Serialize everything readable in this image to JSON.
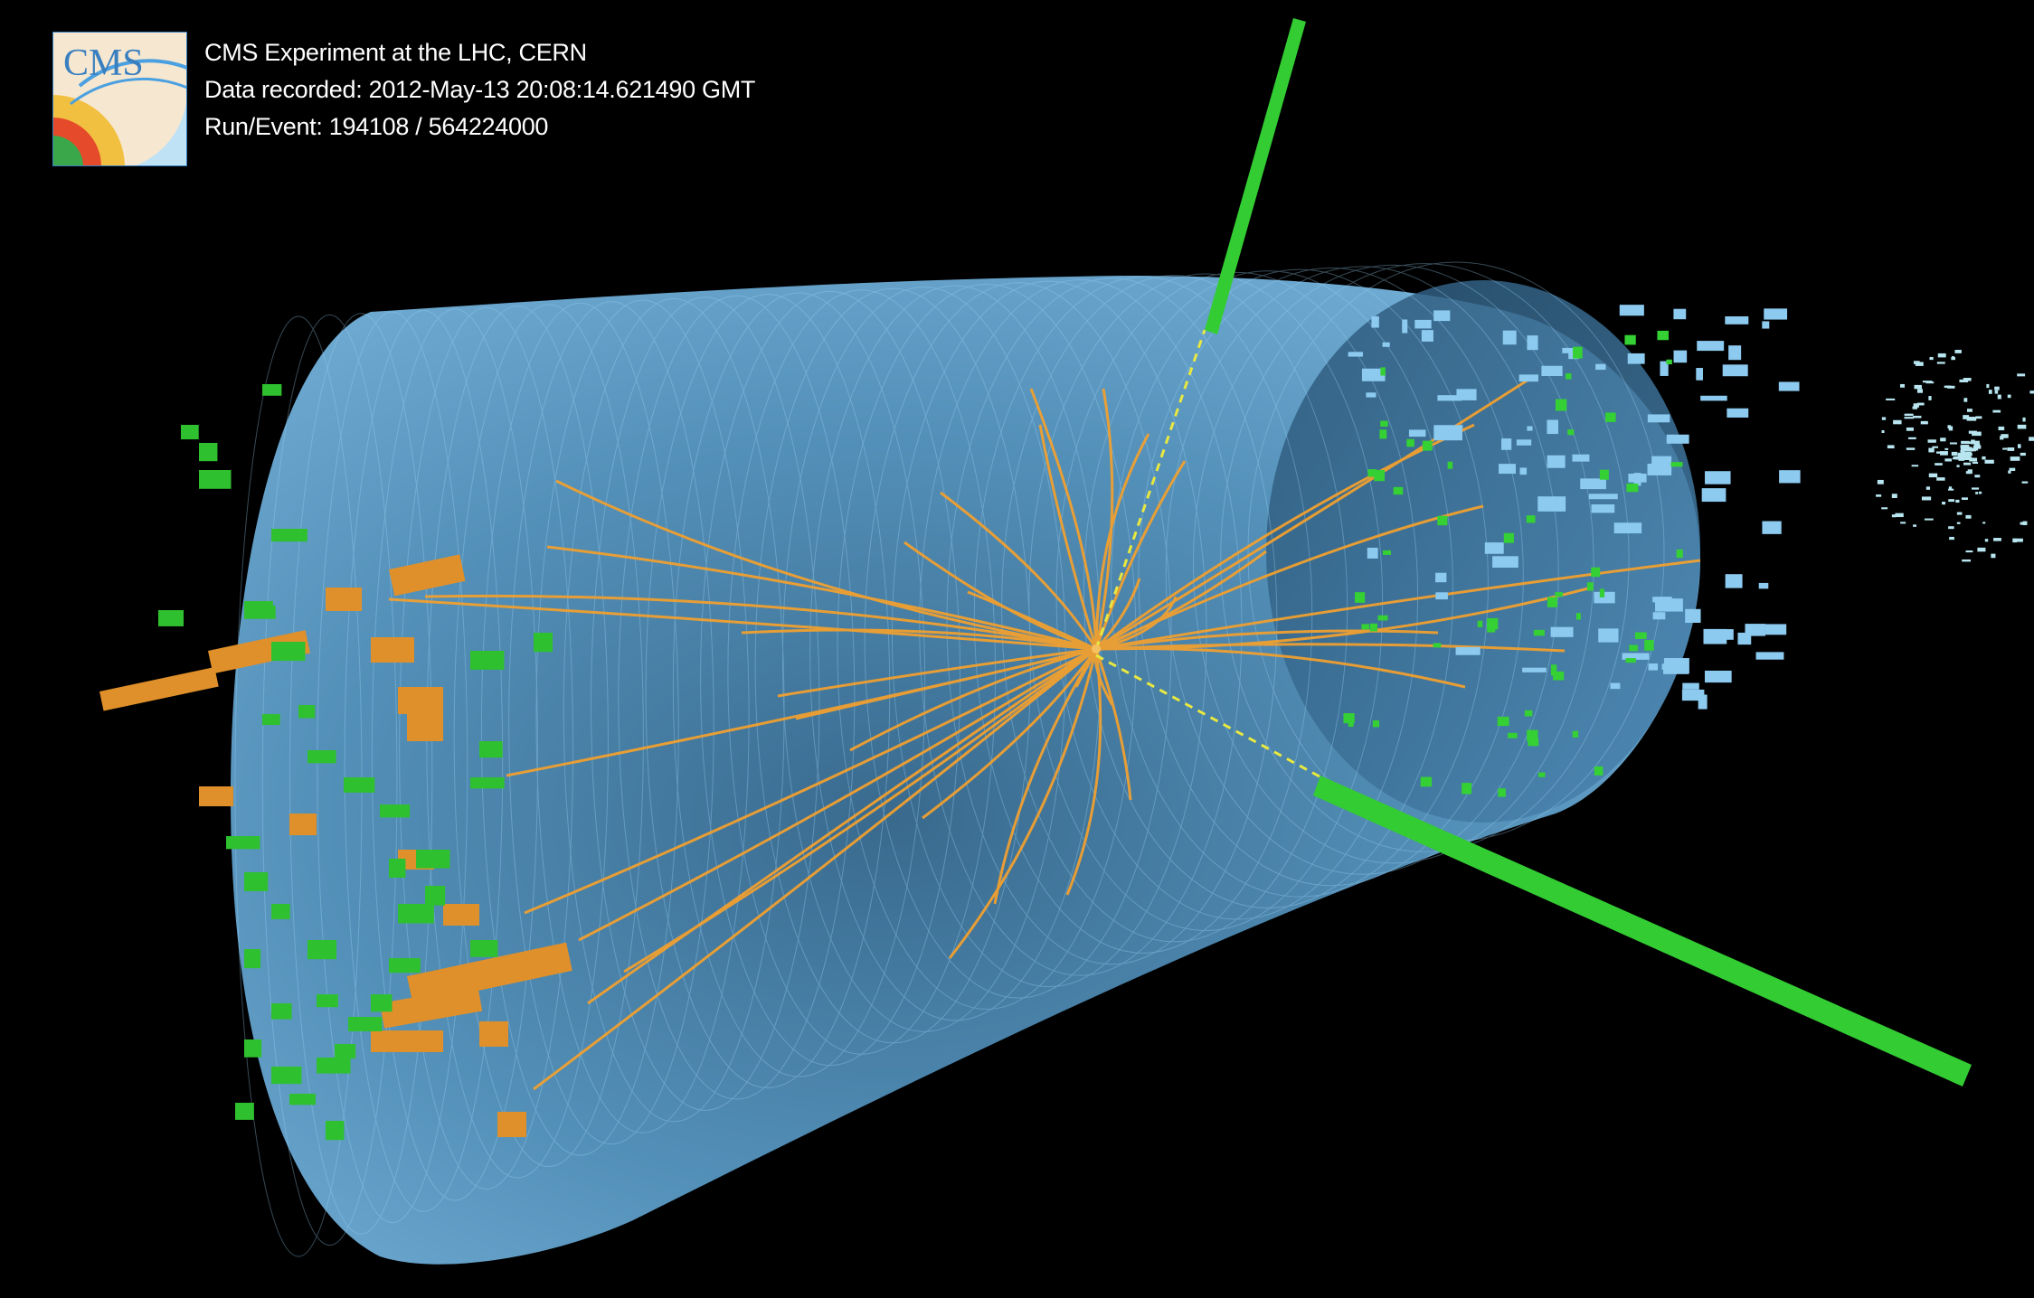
{
  "event_display": {
    "logo": {
      "text": "CMS",
      "icon": "cms-logo-icon"
    },
    "info_lines": [
      "CMS Experiment at the LHC, CERN",
      "Data recorded: 2012-May-13 20:08:14.621490 GMT",
      "Run/Event: 194108 / 564224000"
    ]
  },
  "colors": {
    "background": "#000000",
    "detector_barrel": "#6fb8e8",
    "tracks": "#f0a030",
    "calorimeter_hcal": "#e0902a",
    "calorimeter_ecal": "#33cc33",
    "muon_tracks": "#33cc33",
    "muon_extrapolation": "#e8e840"
  }
}
